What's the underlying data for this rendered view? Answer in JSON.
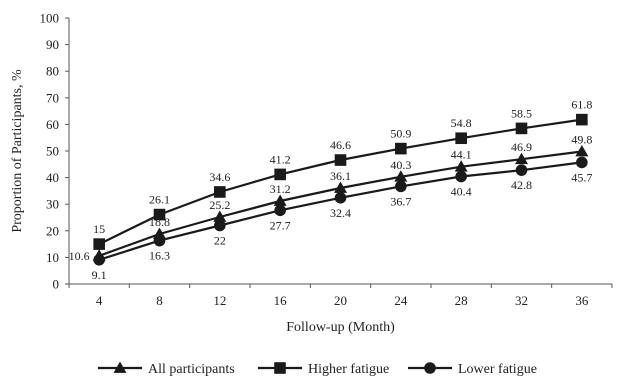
{
  "chart_data": {
    "type": "line",
    "x": [
      4,
      8,
      12,
      16,
      20,
      24,
      28,
      32,
      36
    ],
    "xlabel": "Follow-up (Month)",
    "ylabel": "Proportion of Participants, %",
    "ylim": [
      0,
      100
    ],
    "yticks": [
      0,
      10,
      20,
      30,
      40,
      50,
      60,
      70,
      80,
      90,
      100
    ],
    "grid": false,
    "legend_position": "bottom",
    "series": [
      {
        "name": "All participants",
        "marker": "triangle",
        "color": "#1a1a1a",
        "values": [
          10.6,
          18.8,
          25.2,
          31.2,
          36.1,
          40.3,
          44.1,
          46.9,
          49.8
        ],
        "labels": [
          "10.6",
          "18.8",
          "25.2",
          "31.2",
          "36.1",
          "40.3",
          "44.1",
          "46.9",
          "49.8"
        ]
      },
      {
        "name": "Higher fatigue",
        "marker": "square",
        "color": "#1a1a1a",
        "values": [
          15,
          26.1,
          34.6,
          41.2,
          46.6,
          50.9,
          54.8,
          58.5,
          61.8
        ],
        "labels": [
          "15",
          "26.1",
          "34.6",
          "41.2",
          "46.6",
          "50.9",
          "54.8",
          "58.5",
          "61.8"
        ]
      },
      {
        "name": "Lower fatigue",
        "marker": "circle",
        "color": "#1a1a1a",
        "values": [
          9.1,
          16.3,
          22,
          27.7,
          32.4,
          36.7,
          40.4,
          42.8,
          45.7
        ],
        "labels": [
          "9.1",
          "16.3",
          "22",
          "27.7",
          "32.4",
          "36.7",
          "40.4",
          "42.8",
          "45.7"
        ]
      }
    ]
  }
}
